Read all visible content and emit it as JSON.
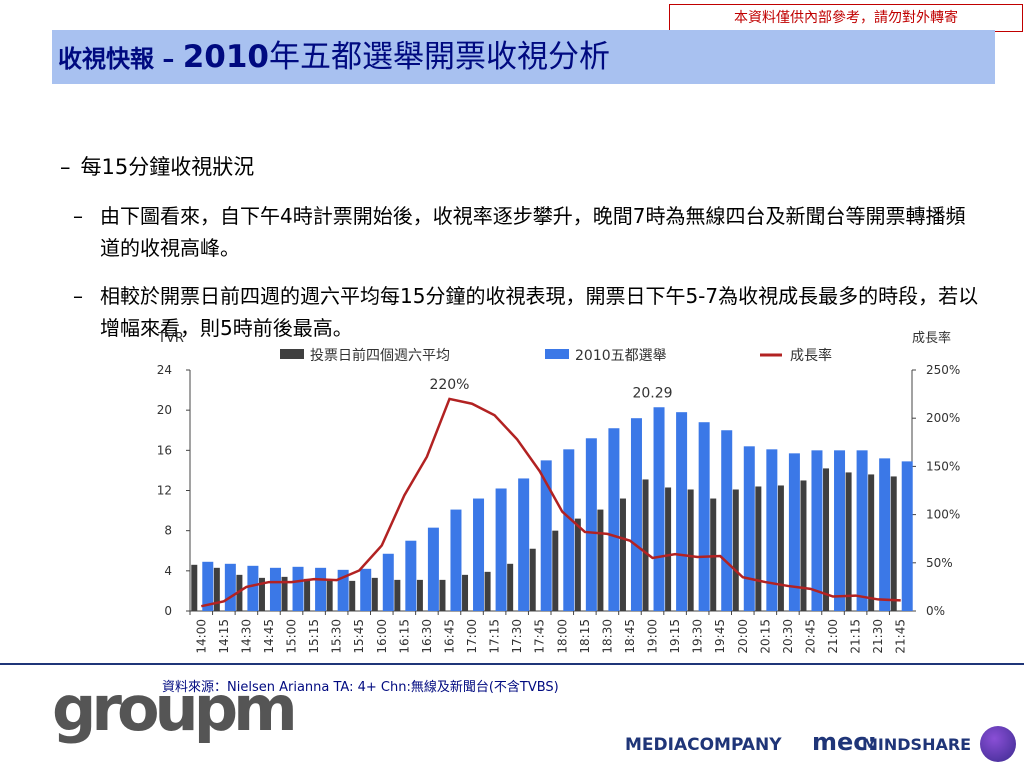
{
  "disclaimer": "本資料僅供內部參考，請勿對外轉寄",
  "title": {
    "prefix": "收視快報 – ",
    "year": "2010",
    "rest": "年五都選舉開票收視分析"
  },
  "bullets": {
    "b1": {
      "dash": "–",
      "text": "每15分鐘收視狀況"
    },
    "b2": {
      "dash": "–",
      "text": "由下圖看來，自下午4時計票開始後，收視率逐步攀升，晚間7時為無線四台及新聞台等開票轉播頻道的收視高峰。"
    },
    "b3": {
      "dash": "–",
      "text": "相較於開票日前四週的週六平均每15分鐘的收視表現，開票日下午5-7為收視成長最多的時段，若以增幅來看，則5時前後最高。"
    }
  },
  "chart_data": {
    "type": "bar",
    "ylabel_left": "TVR",
    "ylabel_right": "成長率",
    "ylim_left": [
      0,
      24
    ],
    "yticks_left": [
      0,
      4,
      8,
      12,
      16,
      20,
      24
    ],
    "ylim_right": [
      0,
      250
    ],
    "yticks_right": [
      "0%",
      "50%",
      "100%",
      "150%",
      "200%",
      "250%"
    ],
    "categories": [
      "14:00",
      "14:15",
      "14:30",
      "14:45",
      "15:00",
      "15:15",
      "15:30",
      "15:45",
      "16:00",
      "16:15",
      "16:30",
      "16:45",
      "17:00",
      "17:15",
      "17:30",
      "17:45",
      "18:00",
      "18:15",
      "18:30",
      "18:45",
      "19:00",
      "19:15",
      "19:30",
      "19:45",
      "20:00",
      "20:15",
      "20:30",
      "20:45",
      "21:00",
      "21:15",
      "21:30",
      "21:45"
    ],
    "series": [
      {
        "name": "投票日前四個週六平均",
        "kind": "bar",
        "color": "#3f3f3f",
        "values": [
          4.6,
          4.3,
          3.6,
          3.3,
          3.4,
          3.2,
          3.1,
          3.0,
          3.3,
          3.1,
          3.1,
          3.1,
          3.6,
          3.9,
          4.7,
          6.2,
          8.0,
          9.2,
          10.1,
          11.2,
          13.1,
          12.3,
          12.1,
          11.2,
          12.1,
          12.4,
          12.5,
          13.0,
          14.2,
          13.8,
          13.6,
          13.4
        ]
      },
      {
        "name": "2010五都選舉",
        "kind": "bar",
        "color": "#3b78e7",
        "values": [
          4.9,
          4.7,
          4.5,
          4.3,
          4.4,
          4.3,
          4.1,
          4.2,
          5.7,
          7.0,
          8.3,
          10.1,
          11.2,
          12.2,
          13.2,
          15.0,
          16.1,
          17.2,
          18.2,
          19.2,
          20.29,
          19.8,
          18.8,
          18.0,
          16.4,
          16.1,
          15.7,
          16.0,
          16.0,
          16.0,
          15.2,
          14.9
        ]
      },
      {
        "name": "成長率",
        "kind": "line",
        "axis": "right",
        "color": "#b22222",
        "values": [
          5,
          10,
          25,
          30,
          30,
          33,
          32,
          42,
          68,
          120,
          160,
          220,
          215,
          203,
          178,
          145,
          103,
          82,
          80,
          73,
          55,
          59,
          56,
          57,
          35,
          30,
          26,
          23,
          15,
          16,
          12,
          11
        ]
      }
    ],
    "annotations": [
      {
        "text": "220%",
        "series": 2,
        "index": 11
      },
      {
        "text": "20.29",
        "series": 1,
        "index": 20
      }
    ],
    "legend": "top"
  },
  "source": "資料來源：Nielsen Arianna TA: 4+ Chn:無線及新聞台(不含TVBS)",
  "logos": {
    "groupm": "groupm",
    "media": "MEDIACOMPANY",
    "mec": "mec:",
    "mind": "MINDSHARE"
  }
}
